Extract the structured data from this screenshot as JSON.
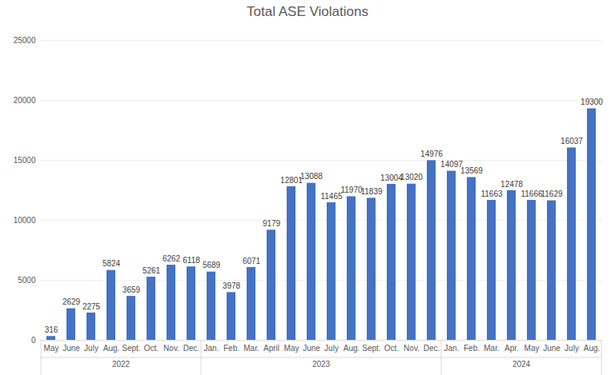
{
  "chart_data": {
    "type": "bar",
    "title": "Total ASE Violations",
    "categories": [
      "May",
      "June",
      "July",
      "Aug.",
      "Sept.",
      "Oct.",
      "Nov.",
      "Dec.",
      "Jan.",
      "Feb.",
      "Mar.",
      "April",
      "May",
      "June",
      "July",
      "Aug.",
      "Sept.",
      "Oct.",
      "Nov.",
      "Dec.",
      "Jan.",
      "Feb.",
      "Mar.",
      "Apr.",
      "May",
      "June",
      "July",
      "Aug."
    ],
    "category_groups": [
      {
        "label": "2022",
        "count": 8
      },
      {
        "label": "2023",
        "count": 12
      },
      {
        "label": "2024",
        "count": 8
      }
    ],
    "values": [
      316,
      2629,
      2275,
      5824,
      3659,
      5261,
      6262,
      6118,
      5689,
      3978,
      6071,
      9179,
      12801,
      13088,
      11465,
      11970,
      11839,
      13004,
      13020,
      14976,
      14097,
      13569,
      11663,
      12478,
      11666,
      11629,
      16037,
      19300
    ],
    "color": "#4472c4",
    "ylim": [
      0,
      25000
    ],
    "yticks": [
      0,
      5000,
      10000,
      15000,
      20000,
      25000
    ],
    "grid": true,
    "data_labels": true
  }
}
